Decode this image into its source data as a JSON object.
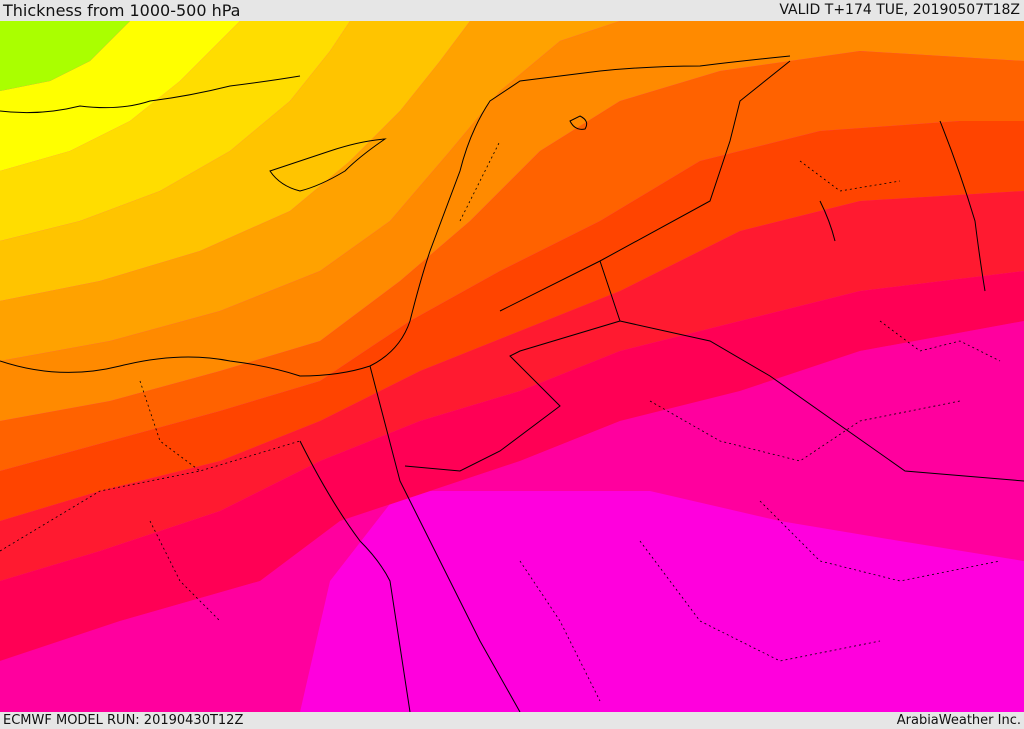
{
  "header": {
    "title": "Thickness from 1000-500 hPa",
    "valid": "VALID T+174 TUE, 20190507T18Z"
  },
  "footer": {
    "model_run": "ECMWF MODEL RUN: 20190430T12Z",
    "credit": "ArabiaWeather Inc."
  },
  "colors": {
    "green": "#aaff00",
    "yellow": "#ffff00",
    "yellow_orange": "#ffd700",
    "light_orange": "#ffc000",
    "orange": "#ffa000",
    "dark_orange": "#ff8800",
    "orange_red": "#ff6000",
    "red_orange": "#ff4000",
    "red": "#ff1040",
    "crimson": "#ff0060",
    "deep_pink": "#ff0090",
    "magenta": "#ff00c0",
    "bright_magenta": "#ff00dd",
    "coastline": "#000000"
  }
}
